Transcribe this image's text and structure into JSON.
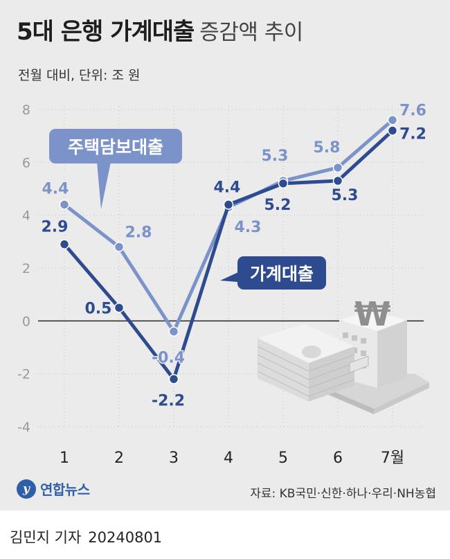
{
  "header": {
    "title_bold": "5대 은행 가계대출",
    "title_light": "증감액 추이",
    "subtitle": "전월 대비, 단위: 조 원"
  },
  "colors": {
    "mortgage": "#7c93c9",
    "household": "#2e4b8f",
    "axis": "#333333",
    "grid": "#c8c8c8",
    "tick": "#999999"
  },
  "chart_data": {
    "type": "line",
    "categories": [
      "1",
      "2",
      "3",
      "4",
      "5",
      "6",
      "7월"
    ],
    "ylim": [
      -4,
      8
    ],
    "yticks": [
      "8",
      "6",
      "4",
      "2",
      "0",
      "-2",
      "-4"
    ],
    "series": [
      {
        "key": "mortgage",
        "name": "주택담보대출",
        "values": [
          4.4,
          2.8,
          -0.4,
          4.3,
          5.3,
          5.8,
          7.6
        ],
        "labels": [
          "4.4",
          "2.8",
          "-0.4",
          "4.3",
          "5.3",
          "5.8",
          "7.6"
        ]
      },
      {
        "key": "household",
        "name": "가계대출",
        "values": [
          2.9,
          0.5,
          -2.2,
          4.4,
          5.2,
          5.3,
          7.2
        ],
        "labels": [
          "2.9",
          "0.5",
          "-2.2",
          "4.4",
          "5.2",
          "5.3",
          "7.2"
        ]
      }
    ]
  },
  "footer": {
    "logo_mark": "y",
    "logo_text": "연합뉴스",
    "source": "자료: KB국민·신한·하나·우리·NH농협",
    "byline_name": "김민지 기자",
    "byline_date": "20240801"
  }
}
